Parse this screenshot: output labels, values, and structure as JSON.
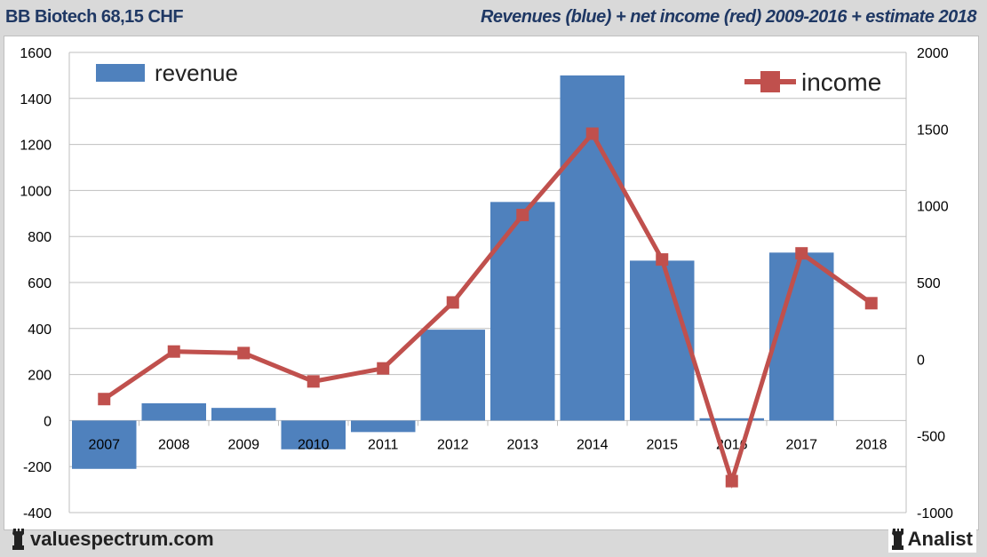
{
  "header": {
    "title": "BB Biotech 68,15 CHF",
    "subtitle": "Revenues (blue) + net income (red) 2009-2016 + estimate 2018"
  },
  "footer": {
    "brand": "valuespectrum.com",
    "partner": "Analist"
  },
  "chart_data": {
    "type": "bar+line",
    "categories": [
      "2007",
      "2008",
      "2009",
      "2010",
      "2011",
      "2012",
      "2013",
      "2014",
      "2015",
      "2016",
      "2017",
      "2018"
    ],
    "series": [
      {
        "name": "revenue",
        "type": "bar",
        "axis": "left",
        "color": "#4f81bd",
        "values": [
          -210,
          75,
          55,
          -125,
          -50,
          395,
          950,
          1500,
          695,
          10,
          730,
          null
        ]
      },
      {
        "name": "income",
        "type": "line",
        "axis": "right",
        "color": "#c0504d",
        "values": [
          -260,
          50,
          40,
          -145,
          -60,
          370,
          940,
          1470,
          650,
          -795,
          690,
          365
        ]
      }
    ],
    "left_axis": {
      "min": -400,
      "max": 1600,
      "step": 200,
      "ticks": [
        "-400",
        "-200",
        "0",
        "200",
        "400",
        "600",
        "800",
        "1000",
        "1200",
        "1400",
        "1600"
      ]
    },
    "right_axis": {
      "min": -1000,
      "max": 2000,
      "step": 500,
      "ticks": [
        "-1000",
        "-500",
        "0",
        "500",
        "1000",
        "1500",
        "2000"
      ]
    },
    "grid": true,
    "legend": [
      {
        "label": "revenue",
        "placement": "top-left"
      },
      {
        "label": "income",
        "placement": "top-right"
      }
    ]
  }
}
